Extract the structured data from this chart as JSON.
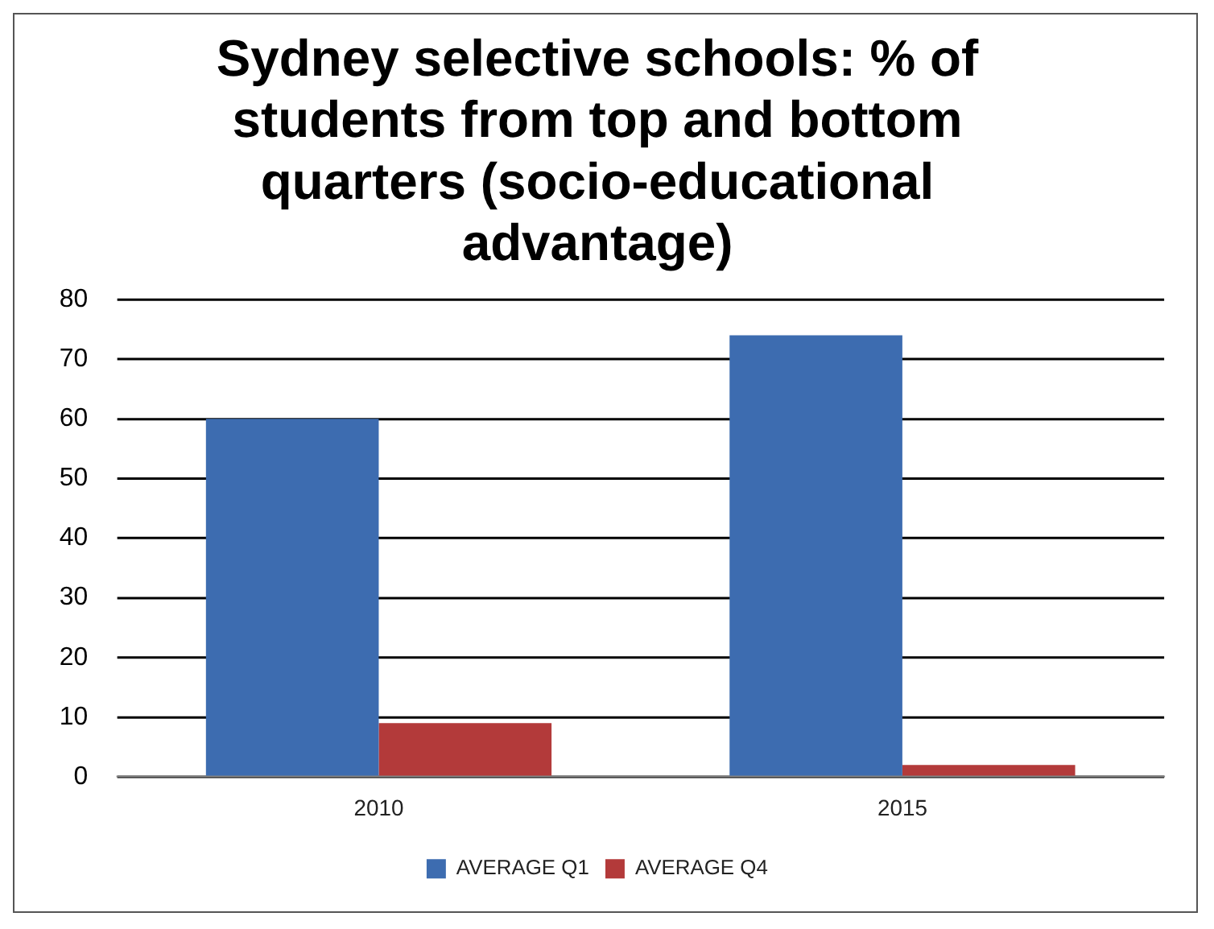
{
  "chart_data": {
    "type": "bar",
    "title": "Sydney selective schools: % of students from top and bottom quarters (socio-educational advantage)",
    "categories": [
      "2010",
      "2015"
    ],
    "series": [
      {
        "name": "AVERAGE Q1",
        "color": "#3d6cb0",
        "values": [
          60,
          74
        ]
      },
      {
        "name": "AVERAGE Q4",
        "color": "#b33a3a",
        "values": [
          9,
          2
        ]
      }
    ],
    "ylim": [
      0,
      80
    ],
    "yticks": [
      0,
      10,
      20,
      30,
      40,
      50,
      60,
      70,
      80
    ],
    "grid": "y",
    "legend": "bottom"
  }
}
